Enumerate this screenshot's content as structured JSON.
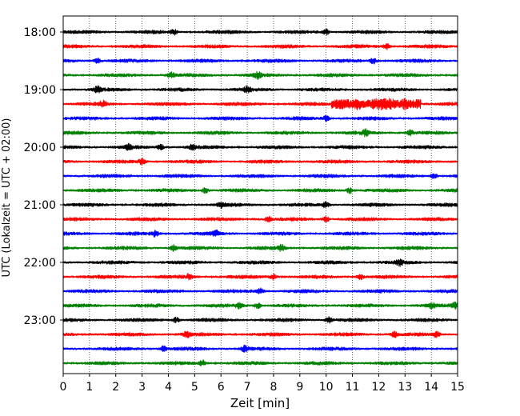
{
  "chart_data": {
    "type": "line",
    "title": "",
    "xlabel": "Zeit  [min]",
    "ylabel": "UTC (Lokalzeit = UTC + 02:00)",
    "xlim": [
      0,
      15
    ],
    "x_ticks": [
      0,
      1,
      2,
      3,
      4,
      5,
      6,
      7,
      8,
      9,
      10,
      11,
      12,
      13,
      14,
      15
    ],
    "x_grid": "dotted vertical lines at each minute",
    "y_tick_labels": [
      "18:00",
      "19:00",
      "20:00",
      "21:00",
      "22:00",
      "23:00"
    ],
    "trace_minutes": 15,
    "color_cycle": [
      "#000000",
      "#ff0000",
      "#0000ff",
      "#008000"
    ],
    "series": [
      {
        "start_utc": "18:00",
        "color": "#000000",
        "events_min": [
          4.2,
          10.0
        ]
      },
      {
        "start_utc": "18:15",
        "color": "#ff0000",
        "events_min": [
          12.3
        ]
      },
      {
        "start_utc": "18:30",
        "color": "#0000ff",
        "events_min": [
          1.3,
          11.8
        ]
      },
      {
        "start_utc": "18:45",
        "color": "#008000",
        "events_min": [
          4.1,
          7.4
        ]
      },
      {
        "start_utc": "19:00",
        "color": "#000000",
        "events_min": [
          1.3,
          7.0
        ]
      },
      {
        "start_utc": "19:15",
        "color": "#ff0000",
        "events_min": [
          1.5,
          11.2,
          13.0
        ],
        "burst_min": [
          10.2,
          13.6
        ]
      },
      {
        "start_utc": "19:30",
        "color": "#0000ff",
        "events_min": [
          10.0
        ]
      },
      {
        "start_utc": "19:45",
        "color": "#008000",
        "events_min": [
          11.5,
          13.2
        ]
      },
      {
        "start_utc": "20:00",
        "color": "#000000",
        "events_min": [
          2.5,
          3.7,
          4.9
        ]
      },
      {
        "start_utc": "20:15",
        "color": "#ff0000",
        "events_min": [
          3.0
        ]
      },
      {
        "start_utc": "20:30",
        "color": "#0000ff",
        "events_min": [
          14.1
        ]
      },
      {
        "start_utc": "20:45",
        "color": "#008000",
        "events_min": [
          5.4,
          10.9
        ]
      },
      {
        "start_utc": "21:00",
        "color": "#000000",
        "events_min": [
          6.0,
          10.0
        ]
      },
      {
        "start_utc": "21:15",
        "color": "#ff0000",
        "events_min": [
          7.8,
          10.0
        ]
      },
      {
        "start_utc": "21:30",
        "color": "#0000ff",
        "events_min": [
          3.5,
          5.8
        ]
      },
      {
        "start_utc": "21:45",
        "color": "#008000",
        "events_min": [
          4.2,
          8.3
        ]
      },
      {
        "start_utc": "22:00",
        "color": "#000000",
        "events_min": [
          12.8
        ]
      },
      {
        "start_utc": "22:15",
        "color": "#ff0000",
        "events_min": [
          4.8,
          8.0,
          11.3
        ]
      },
      {
        "start_utc": "22:30",
        "color": "#0000ff",
        "events_min": [
          7.5
        ]
      },
      {
        "start_utc": "22:45",
        "color": "#008000",
        "events_min": [
          6.7,
          7.4,
          14.0,
          14.9
        ]
      },
      {
        "start_utc": "23:00",
        "color": "#000000",
        "events_min": [
          4.3,
          10.1
        ]
      },
      {
        "start_utc": "23:15",
        "color": "#ff0000",
        "events_min": [
          4.7,
          12.6,
          14.2
        ]
      },
      {
        "start_utc": "23:30",
        "color": "#0000ff",
        "events_min": [
          3.8,
          6.9
        ]
      },
      {
        "start_utc": "23:45",
        "color": "#008000",
        "events_min": [
          5.3
        ]
      }
    ]
  }
}
